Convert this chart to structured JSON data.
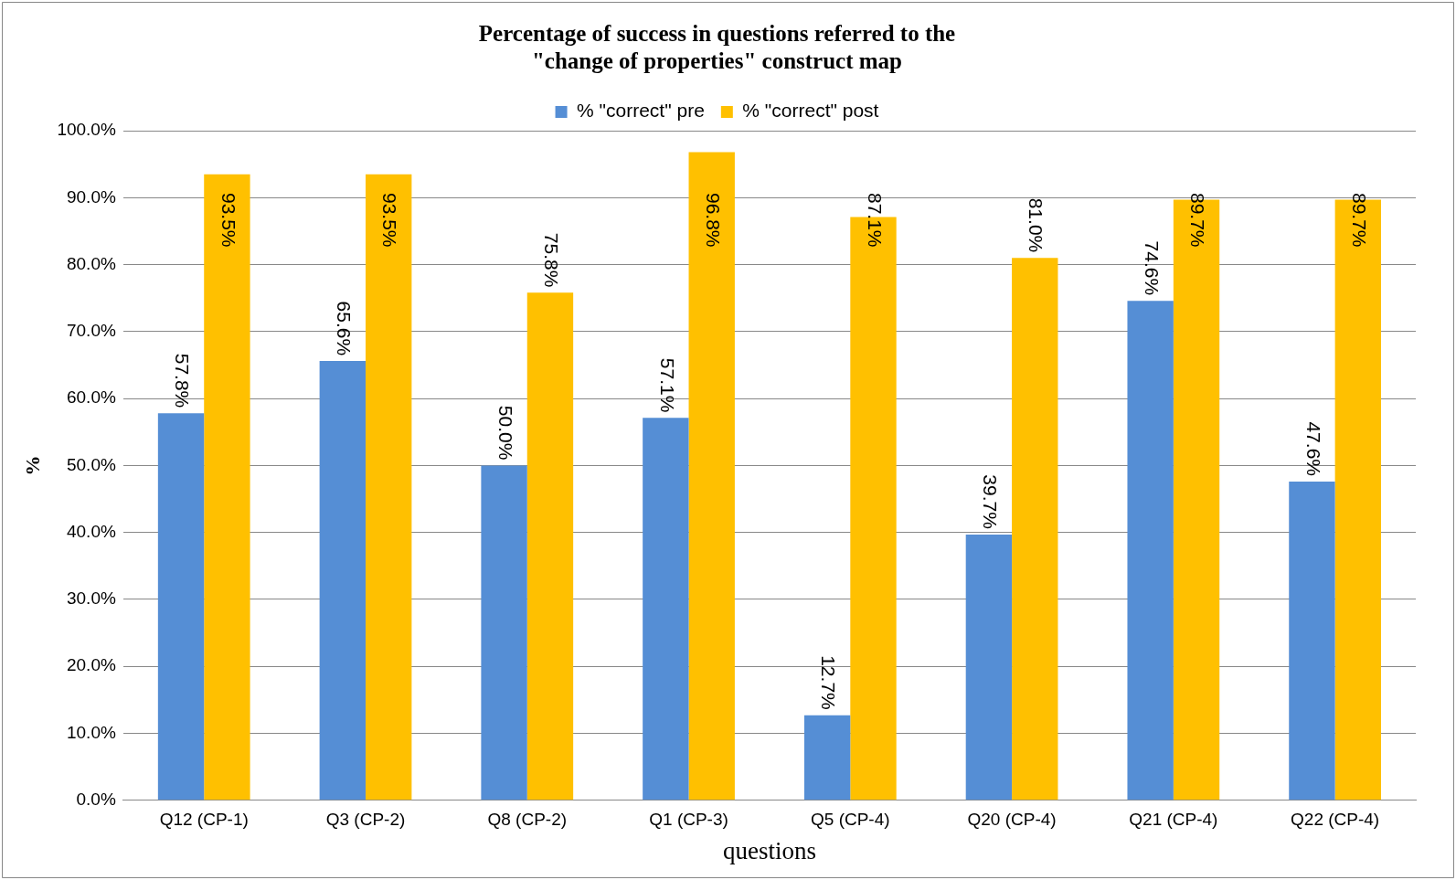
{
  "chart_data": {
    "type": "bar",
    "title": "Percentage of success in questions referred to the\n\"change of properties\" construct map",
    "xlabel": "questions",
    "ylabel": "%",
    "categories": [
      "Q12 (CP-1)",
      "Q3 (CP-2)",
      "Q8 (CP-2)",
      "Q1 (CP-3)",
      "Q5 (CP-4)",
      "Q20 (CP-4)",
      "Q21 (CP-4)",
      "Q22 (CP-4)"
    ],
    "series": [
      {
        "name": "% \"correct\" pre",
        "color": "#558ed5",
        "values": [
          57.8,
          65.6,
          50.0,
          57.1,
          12.7,
          39.7,
          74.6,
          47.6
        ],
        "value_labels": [
          "57.8%",
          "65.6%",
          "50.0%",
          "57.1%",
          "12.7%",
          "39.7%",
          "74.6%",
          "47.6%"
        ]
      },
      {
        "name": "% \"correct\" post",
        "color": "#ffc000",
        "values": [
          93.5,
          93.5,
          75.8,
          96.8,
          87.1,
          81.0,
          89.7,
          89.7
        ],
        "value_labels": [
          "93.5%",
          "93.5%",
          "75.8%",
          "96.8%",
          "87.1%",
          "81.0%",
          "89.7%",
          "89.7%"
        ]
      }
    ],
    "ylim": [
      0,
      100
    ],
    "yticks": [
      {
        "value": 0,
        "label": "0.0%"
      },
      {
        "value": 10,
        "label": "10.0%"
      },
      {
        "value": 20,
        "label": "20.0%"
      },
      {
        "value": 30,
        "label": "30.0%"
      },
      {
        "value": 40,
        "label": "40.0%"
      },
      {
        "value": 50,
        "label": "50.0%"
      },
      {
        "value": 60,
        "label": "60.0%"
      },
      {
        "value": 70,
        "label": "70.0%"
      },
      {
        "value": 80,
        "label": "80.0%"
      },
      {
        "value": 90,
        "label": "90.0%"
      },
      {
        "value": 100,
        "label": "100.0%"
      }
    ],
    "grid": "y",
    "legend": "top"
  }
}
